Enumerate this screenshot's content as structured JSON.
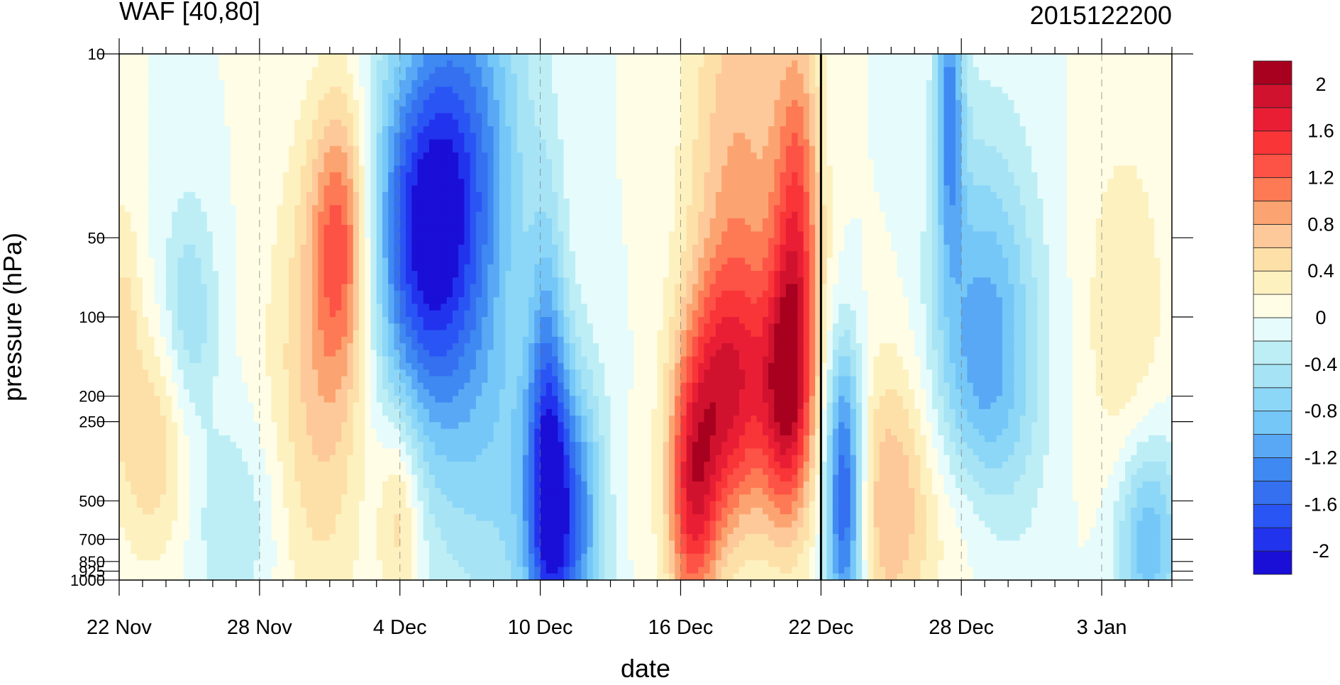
{
  "chart_data": {
    "type": "heatmap",
    "title_left": "WAF [40,80]",
    "title_right": "2015122200",
    "xlabel": "date",
    "ylabel": "pressure (hPa)",
    "x_tick_labels": [
      "22 Nov",
      "28 Nov",
      "4 Dec",
      "10 Dec",
      "16 Dec",
      "22 Dec",
      "28 Dec",
      "3 Jan"
    ],
    "x_tick_days": [
      0,
      6,
      12,
      18,
      24,
      30,
      36,
      42
    ],
    "x_range_days": [
      0,
      45
    ],
    "marked_day": 30,
    "y_scale": "log",
    "y_range": [
      1000,
      10
    ],
    "y_ticks": [
      {
        "value": 10,
        "label": "10"
      },
      {
        "value": 50,
        "label": "50"
      },
      {
        "value": 100,
        "label": "100"
      },
      {
        "value": 200,
        "label": "200"
      },
      {
        "value": 250,
        "label": "250"
      },
      {
        "value": 500,
        "label": "500"
      },
      {
        "value": 700,
        "label": "700"
      },
      {
        "value": 850,
        "label": "850"
      },
      {
        "value": 925,
        "label": "925"
      },
      {
        "value": 1000,
        "label": "1000"
      }
    ],
    "colorbar": {
      "levels": [
        -2.2,
        -2,
        -1.8,
        -1.6,
        -1.4,
        -1.2,
        -1,
        -0.8,
        -0.6,
        -0.4,
        -0.2,
        0,
        0.2,
        0.4,
        0.6,
        0.8,
        1,
        1.2,
        1.4,
        1.6,
        1.8,
        2,
        2.2
      ],
      "colors": [
        "#1a0fd6",
        "#2233ee",
        "#2a55f5",
        "#3470f0",
        "#3f89f2",
        "#59a8f5",
        "#74c7f7",
        "#8cd6f7",
        "#a6e3f5",
        "#bdeef6",
        "#e6fbfb",
        "#fffde6",
        "#fdf1c0",
        "#fde0a8",
        "#fdc99a",
        "#fca471",
        "#fd7a54",
        "#fd5246",
        "#f93538",
        "#e91e35",
        "#d0122e",
        "#a8001f"
      ],
      "tick_labels": [
        "2",
        "1.6",
        "1.2",
        "0.8",
        "0.4",
        "0",
        "-0.4",
        "-0.8",
        "-1.2",
        "-1.6",
        "-2"
      ],
      "tick_values": [
        2,
        1.6,
        1.2,
        0.8,
        0.4,
        0,
        -0.4,
        -0.8,
        -1.2,
        -1.6,
        -2
      ]
    },
    "anomalies": [
      {
        "day": 9.5,
        "p": 50,
        "v": 1.2,
        "sx": 1.3,
        "sy": 0.55
      },
      {
        "day": 8.5,
        "p": 200,
        "v": 0.6,
        "sx": 2.2,
        "sy": 0.9
      },
      {
        "day": 1.5,
        "p": 300,
        "v": 0.6,
        "sx": 1.6,
        "sy": 0.45
      },
      {
        "day": 0.2,
        "p": 100,
        "v": 0.4,
        "sx": 0.7,
        "sy": 0.5
      },
      {
        "day": 3,
        "p": 100,
        "v": -0.6,
        "sx": 1.2,
        "sy": 0.45
      },
      {
        "day": 5,
        "p": 600,
        "v": -0.4,
        "sx": 2,
        "sy": 0.4
      },
      {
        "day": 13,
        "p": 50,
        "v": -1.8,
        "sx": 2.4,
        "sy": 0.7
      },
      {
        "day": 15,
        "p": 20,
        "v": -1.0,
        "sx": 2.5,
        "sy": 0.9
      },
      {
        "day": 16,
        "p": 400,
        "v": -0.5,
        "sx": 3,
        "sy": 0.7
      },
      {
        "day": 12,
        "p": 550,
        "v": 0.6,
        "sx": 0.9,
        "sy": 0.4
      },
      {
        "day": 19,
        "p": 600,
        "v": -1.6,
        "sx": 1.6,
        "sy": 0.55
      },
      {
        "day": 18.3,
        "p": 250,
        "v": -1.0,
        "sx": 0.8,
        "sy": 0.8
      },
      {
        "day": 21.5,
        "p": 500,
        "v": 0.1,
        "sx": 1.2,
        "sy": 0.35
      },
      {
        "day": 24.5,
        "p": 500,
        "v": 1.4,
        "sx": 1.1,
        "sy": 0.5
      },
      {
        "day": 26,
        "p": 200,
        "v": 1.4,
        "sx": 1.8,
        "sy": 0.5
      },
      {
        "day": 28.5,
        "p": 200,
        "v": 1.4,
        "sx": 1.1,
        "sy": 0.5
      },
      {
        "day": 26.5,
        "p": 30,
        "v": 0.8,
        "sx": 2.2,
        "sy": 1.1
      },
      {
        "day": 29,
        "p": 50,
        "v": 1.2,
        "sx": 1.0,
        "sy": 0.8
      },
      {
        "day": 31,
        "p": 700,
        "v": -1.4,
        "sx": 0.8,
        "sy": 0.45
      },
      {
        "day": 31,
        "p": 250,
        "v": -0.9,
        "sx": 0.8,
        "sy": 0.4
      },
      {
        "day": 33,
        "p": 500,
        "v": 0.8,
        "sx": 1.8,
        "sy": 0.55
      },
      {
        "day": 36.5,
        "p": 600,
        "v": 0.5,
        "sx": 2,
        "sy": 0.4
      },
      {
        "day": 37,
        "p": 150,
        "v": -1.2,
        "sx": 2.2,
        "sy": 0.8
      },
      {
        "day": 35.5,
        "p": 15,
        "v": -1.2,
        "sx": 0.6,
        "sy": 0.6
      },
      {
        "day": 43,
        "p": 100,
        "v": 0.4,
        "sx": 1.8,
        "sy": 0.7
      },
      {
        "day": 44,
        "p": 700,
        "v": -1.0,
        "sx": 1.4,
        "sy": 0.4
      }
    ],
    "grid": false
  }
}
